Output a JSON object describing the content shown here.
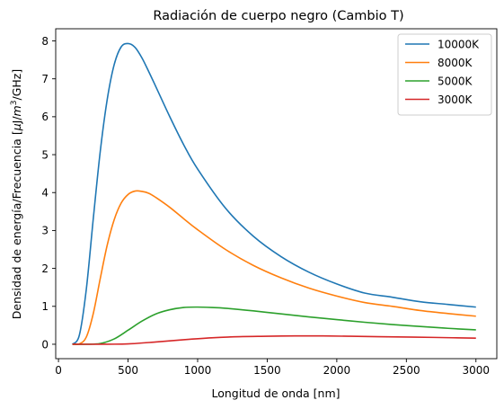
{
  "chart_data": {
    "type": "line",
    "title": "Radiación de cuerpo negro (Cambio T)",
    "xlabel": "Longitud de onda [nm]",
    "ylabel_prefix": "Densidad de energía/Frecuencia [",
    "ylabel_mu": "μ",
    "ylabel_J": "J",
    "ylabel_slash": "/",
    "ylabel_m": "m",
    "ylabel_exp": "3",
    "ylabel_suffix": "/GHz]",
    "xlim": [
      -20,
      3150
    ],
    "ylim": [
      -0.38,
      8.32
    ],
    "xticks": [
      0,
      500,
      1000,
      1500,
      2000,
      2500,
      3000
    ],
    "xtick_labels": [
      "0",
      "500",
      "1000",
      "1500",
      "2000",
      "2500",
      "3000"
    ],
    "yticks": [
      0,
      1,
      2,
      3,
      4,
      5,
      6,
      7,
      8
    ],
    "ytick_labels": [
      "0",
      "1",
      "2",
      "3",
      "4",
      "5",
      "6",
      "7",
      "8"
    ],
    "legend_position": "top-right",
    "grid": false,
    "series": [
      {
        "name": "10000K",
        "color": "#1f77b4",
        "x": [
          100,
          150,
          200,
          250,
          300,
          350,
          400,
          450,
          500,
          550,
          600,
          650,
          700,
          800,
          900,
          1000,
          1200,
          1400,
          1600,
          1800,
          2000,
          2200,
          2400,
          2600,
          2800,
          3000
        ],
        "y": [
          0.0,
          0.24,
          1.45,
          3.31,
          5.08,
          6.45,
          7.37,
          7.84,
          7.93,
          7.83,
          7.55,
          7.18,
          6.79,
          6.0,
          5.26,
          4.62,
          3.59,
          2.85,
          2.31,
          1.9,
          1.59,
          1.35,
          1.24,
          1.12,
          1.05,
          0.98
        ]
      },
      {
        "name": "8000K",
        "color": "#ff7f0e",
        "x": [
          100,
          150,
          200,
          250,
          300,
          350,
          400,
          450,
          500,
          550,
          600,
          650,
          700,
          800,
          900,
          1000,
          1200,
          1400,
          1600,
          1800,
          2000,
          2200,
          2400,
          2600,
          2800,
          3000
        ],
        "y": [
          0.0,
          0.01,
          0.19,
          0.81,
          1.73,
          2.61,
          3.28,
          3.72,
          3.95,
          4.04,
          4.03,
          3.98,
          3.87,
          3.61,
          3.31,
          3.02,
          2.5,
          2.08,
          1.75,
          1.48,
          1.27,
          1.1,
          1.0,
          0.89,
          0.81,
          0.74
        ]
      },
      {
        "name": "5000K",
        "color": "#2ca02c",
        "x": [
          100,
          200,
          300,
          400,
          500,
          600,
          700,
          800,
          900,
          1000,
          1100,
          1200,
          1400,
          1600,
          1800,
          2000,
          2200,
          2400,
          2600,
          2800,
          3000
        ],
        "y": [
          0.0,
          0.0,
          0.02,
          0.14,
          0.37,
          0.61,
          0.8,
          0.91,
          0.97,
          0.98,
          0.97,
          0.95,
          0.88,
          0.8,
          0.72,
          0.65,
          0.58,
          0.52,
          0.47,
          0.42,
          0.38
        ]
      },
      {
        "name": "3000K",
        "color": "#d62728",
        "x": [
          100,
          300,
          500,
          700,
          900,
          1100,
          1300,
          1500,
          1700,
          1900,
          2100,
          2300,
          2500,
          2700,
          3000
        ],
        "y": [
          0.0,
          0.0,
          0.01,
          0.06,
          0.12,
          0.17,
          0.2,
          0.21,
          0.22,
          0.22,
          0.21,
          0.2,
          0.19,
          0.18,
          0.16
        ]
      }
    ]
  }
}
